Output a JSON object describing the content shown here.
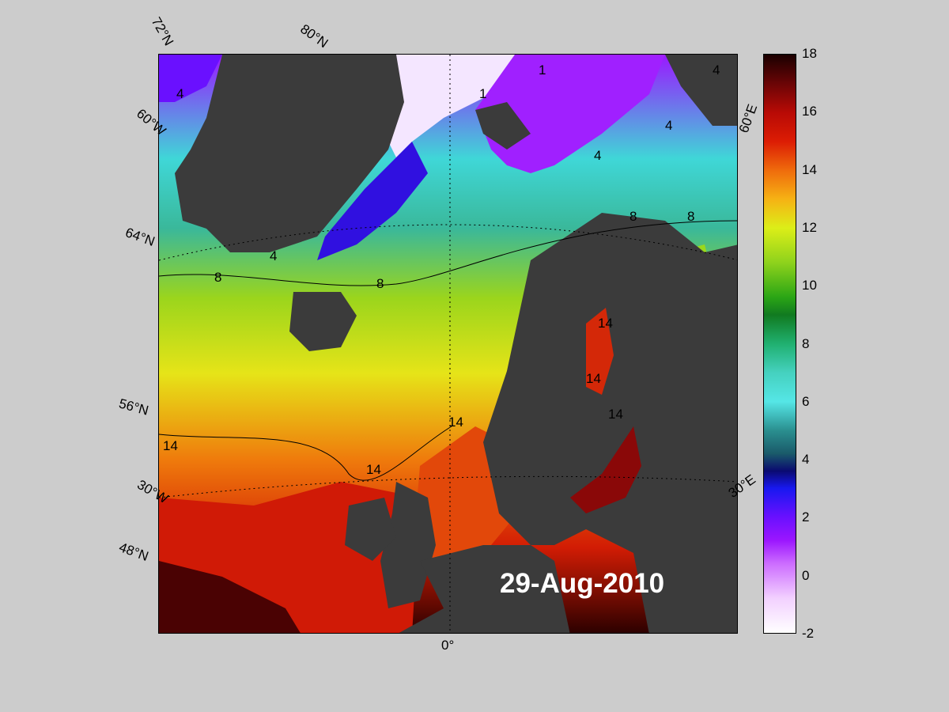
{
  "map": {
    "date": "29-Aug-2010",
    "lat_labels": [
      "72°N",
      "60°N",
      "64°N",
      "56°N",
      "48°N"
    ],
    "lon_labels": [
      "80°N",
      "60°W",
      "30°W",
      "0°",
      "30°E",
      "60°E"
    ],
    "contours": [
      "4",
      "1",
      "1",
      "4",
      "4",
      "4",
      "8",
      "8",
      "8",
      "8",
      "4",
      "14",
      "14",
      "14",
      "14",
      "14",
      "14"
    ]
  },
  "colorbar": {
    "ticks": [
      "18",
      "16",
      "14",
      "12",
      "10",
      "8",
      "6",
      "4",
      "2",
      "0",
      "-2"
    ],
    "colors": [
      "#ffffff",
      "#9b16ff",
      "#1818f0",
      "#0a0a70",
      "#55e6e6",
      "#117a20",
      "#dcee18",
      "#ef6b0c",
      "#dc1c04",
      "#1a0000"
    ]
  }
}
